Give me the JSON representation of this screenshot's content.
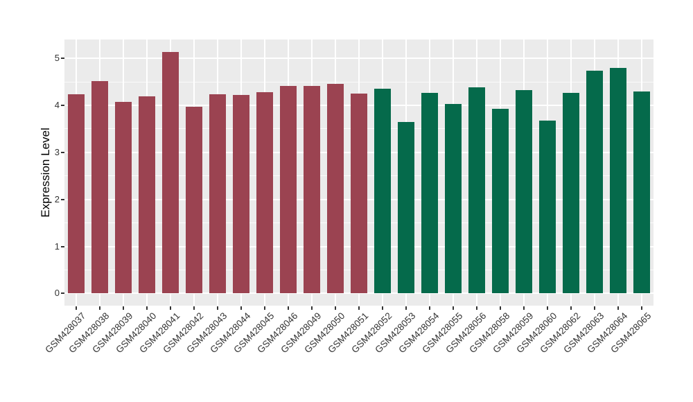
{
  "chart_data": {
    "type": "bar",
    "title": "",
    "xlabel": "",
    "ylabel": "Expression Level",
    "ylim": [
      -0.26,
      5.4
    ],
    "yticks": [
      0,
      1,
      2,
      3,
      4,
      5
    ],
    "ytick_labels": [
      "0",
      "1",
      "2",
      "3",
      "4",
      "5"
    ],
    "minor_yticks": [
      0.5,
      1.5,
      2.5,
      3.5,
      4.5
    ],
    "grid": "white major and minor gridlines on grey panel (ggplot theme_grey)",
    "legend_position": "none",
    "categories": [
      "GSM428037",
      "GSM428038",
      "GSM428039",
      "GSM428040",
      "GSM428041",
      "GSM428042",
      "GSM428043",
      "GSM428044",
      "GSM428045",
      "GSM428046",
      "GSM428049",
      "GSM428050",
      "GSM428051",
      "GSM428052",
      "GSM428053",
      "GSM428054",
      "GSM428055",
      "GSM428056",
      "GSM428058",
      "GSM428059",
      "GSM428060",
      "GSM428062",
      "GSM428063",
      "GSM428064",
      "GSM428065"
    ],
    "values": [
      4.23,
      4.52,
      4.07,
      4.19,
      5.14,
      3.97,
      4.24,
      4.22,
      4.28,
      4.41,
      4.41,
      4.45,
      4.25,
      4.35,
      3.64,
      4.27,
      4.03,
      4.38,
      3.93,
      4.33,
      3.67,
      4.27,
      4.74,
      4.8,
      4.3
    ],
    "groups": [
      "group1",
      "group1",
      "group1",
      "group1",
      "group1",
      "group1",
      "group1",
      "group1",
      "group1",
      "group1",
      "group1",
      "group1",
      "group1",
      "group2",
      "group2",
      "group2",
      "group2",
      "group2",
      "group2",
      "group2",
      "group2",
      "group2",
      "group2",
      "group2",
      "group2"
    ]
  },
  "colors": {
    "figure_background": "#FFFFFF",
    "panel_background": "#EBEBEB",
    "gridline_major": "#FFFFFF",
    "gridline_minor": "rgba(255,255,255,0.8)",
    "axis_text": "#333333",
    "axis_title": "#000000",
    "tick_mark": "#333333",
    "bar_group1": "#9B4351",
    "bar_group2": "#056A4B"
  }
}
